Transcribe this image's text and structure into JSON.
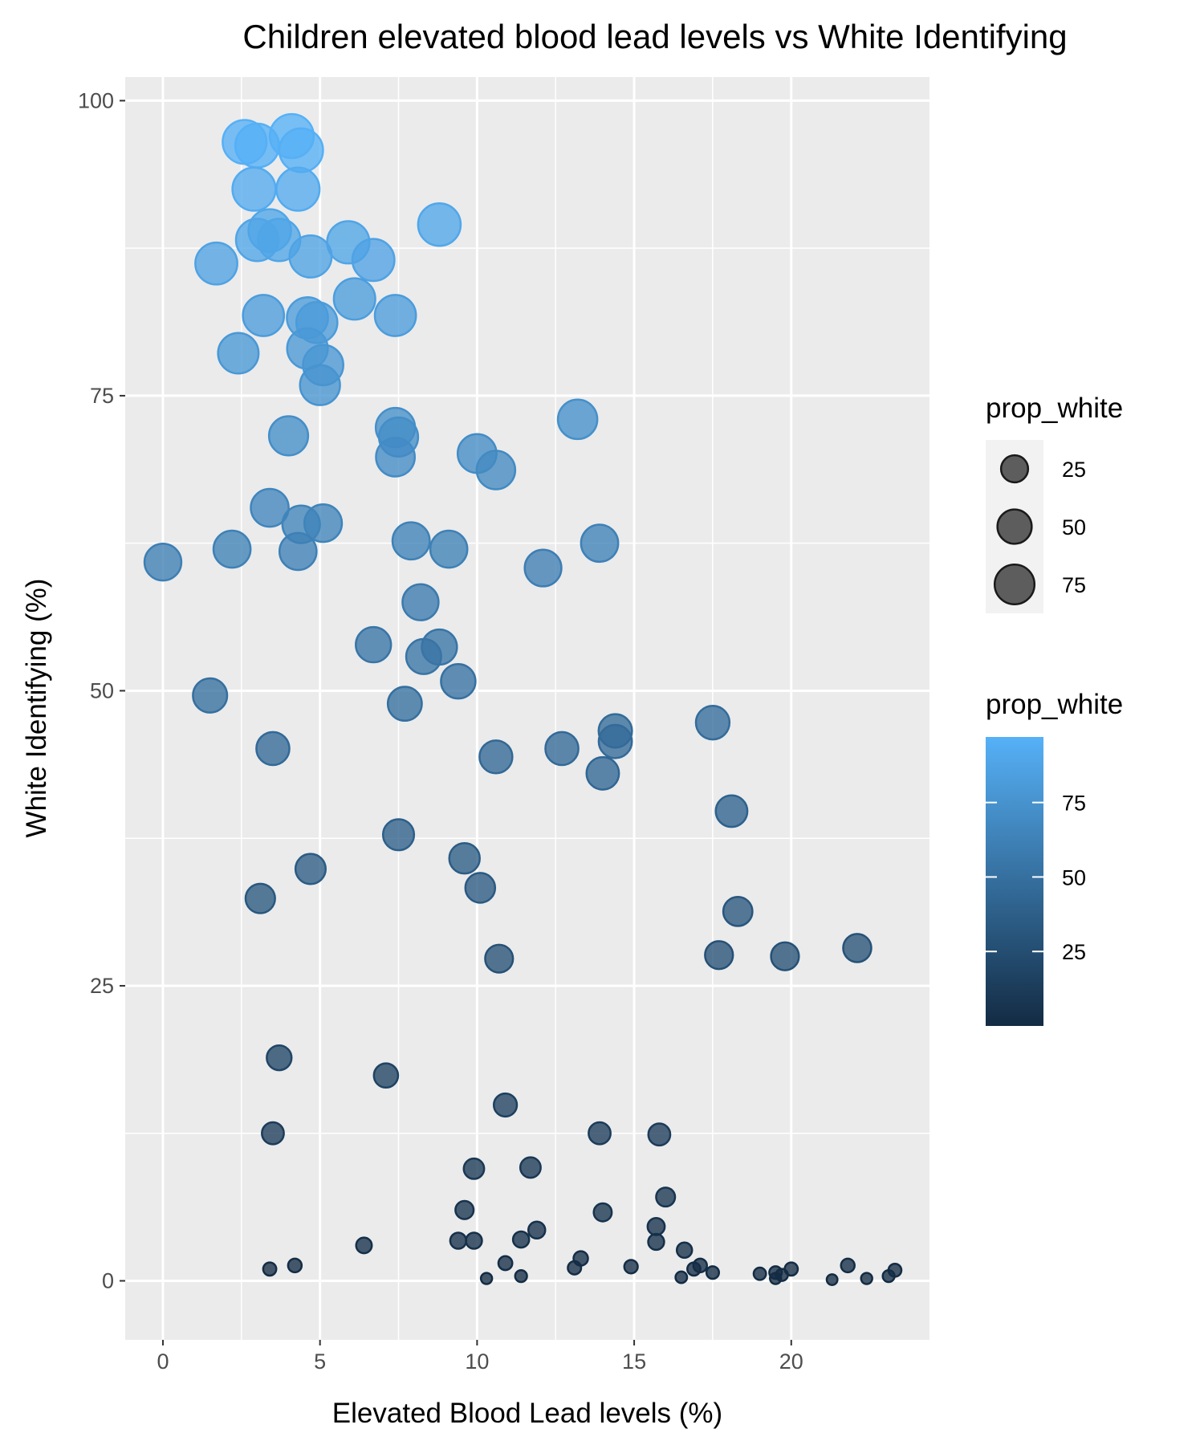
{
  "chart_data": {
    "type": "scatter",
    "title": "Children elevated blood lead levels vs White Identifying",
    "xlabel": "Elevated Blood Lead levels (%)",
    "ylabel": "White Identifying (%)",
    "xlim": [
      -1.2,
      24.4
    ],
    "ylim": [
      -5,
      102
    ],
    "x_ticks": [
      0,
      5,
      10,
      15,
      20
    ],
    "x_tick_labels": [
      "0",
      "5",
      "10",
      "15",
      "20"
    ],
    "y_ticks": [
      0,
      25,
      50,
      75,
      100
    ],
    "y_tick_labels": [
      "0",
      "25",
      "50",
      "75",
      "100"
    ],
    "grid": true,
    "size_legend": {
      "title": "prop_white",
      "entries": [
        {
          "value": 25,
          "label": "25"
        },
        {
          "value": 50,
          "label": "50"
        },
        {
          "value": 75,
          "label": "75"
        }
      ]
    },
    "color_legend": {
      "title": "prop_white",
      "ticks": [
        {
          "value": 75,
          "label": "75"
        },
        {
          "value": 50,
          "label": "50"
        },
        {
          "value": 25,
          "label": "25"
        }
      ],
      "range": [
        0,
        97
      ],
      "low_color": "#132b43",
      "high_color": "#56b1f7"
    },
    "points": [
      {
        "x": 2.6,
        "y": 96.5
      },
      {
        "x": 3.0,
        "y": 96.2
      },
      {
        "x": 4.1,
        "y": 97.0
      },
      {
        "x": 4.4,
        "y": 95.8
      },
      {
        "x": 2.9,
        "y": 92.5
      },
      {
        "x": 4.3,
        "y": 92.5
      },
      {
        "x": 8.8,
        "y": 89.5
      },
      {
        "x": 3.4,
        "y": 89.0
      },
      {
        "x": 3.0,
        "y": 88.2
      },
      {
        "x": 3.7,
        "y": 88.2
      },
      {
        "x": 5.9,
        "y": 88.0
      },
      {
        "x": 4.7,
        "y": 86.8
      },
      {
        "x": 6.7,
        "y": 86.5
      },
      {
        "x": 1.7,
        "y": 86.2
      },
      {
        "x": 6.1,
        "y": 83.2
      },
      {
        "x": 3.2,
        "y": 81.8
      },
      {
        "x": 7.4,
        "y": 81.8
      },
      {
        "x": 4.6,
        "y": 81.6
      },
      {
        "x": 4.9,
        "y": 81.2
      },
      {
        "x": 2.4,
        "y": 78.6
      },
      {
        "x": 4.6,
        "y": 79.0
      },
      {
        "x": 5.1,
        "y": 77.6
      },
      {
        "x": 5.0,
        "y": 75.9
      },
      {
        "x": 13.2,
        "y": 73.0
      },
      {
        "x": 7.4,
        "y": 72.3
      },
      {
        "x": 7.5,
        "y": 71.5
      },
      {
        "x": 4.0,
        "y": 71.6
      },
      {
        "x": 7.4,
        "y": 69.8
      },
      {
        "x": 10.0,
        "y": 70.1
      },
      {
        "x": 10.6,
        "y": 68.7
      },
      {
        "x": 3.4,
        "y": 65.5
      },
      {
        "x": 4.4,
        "y": 64.1
      },
      {
        "x": 5.1,
        "y": 64.2
      },
      {
        "x": 7.9,
        "y": 62.7
      },
      {
        "x": 13.9,
        "y": 62.5
      },
      {
        "x": 2.2,
        "y": 62.0
      },
      {
        "x": 9.1,
        "y": 62.0
      },
      {
        "x": 4.3,
        "y": 61.8
      },
      {
        "x": 0.0,
        "y": 60.9
      },
      {
        "x": 12.1,
        "y": 60.4
      },
      {
        "x": 8.2,
        "y": 57.5
      },
      {
        "x": 6.7,
        "y": 53.9
      },
      {
        "x": 8.8,
        "y": 53.7
      },
      {
        "x": 8.3,
        "y": 52.9
      },
      {
        "x": 9.4,
        "y": 50.8
      },
      {
        "x": 1.5,
        "y": 49.6
      },
      {
        "x": 7.7,
        "y": 48.9
      },
      {
        "x": 14.4,
        "y": 46.6
      },
      {
        "x": 17.5,
        "y": 47.3
      },
      {
        "x": 14.4,
        "y": 45.7
      },
      {
        "x": 3.5,
        "y": 45.1
      },
      {
        "x": 12.7,
        "y": 45.1
      },
      {
        "x": 10.6,
        "y": 44.4
      },
      {
        "x": 14.0,
        "y": 43.0
      },
      {
        "x": 18.1,
        "y": 39.8
      },
      {
        "x": 7.5,
        "y": 37.8
      },
      {
        "x": 9.6,
        "y": 35.8
      },
      {
        "x": 4.7,
        "y": 34.9
      },
      {
        "x": 10.1,
        "y": 33.3
      },
      {
        "x": 3.1,
        "y": 32.4
      },
      {
        "x": 18.3,
        "y": 31.3
      },
      {
        "x": 22.1,
        "y": 28.2
      },
      {
        "x": 17.7,
        "y": 27.6
      },
      {
        "x": 19.8,
        "y": 27.5
      },
      {
        "x": 10.7,
        "y": 27.3
      },
      {
        "x": 3.7,
        "y": 18.9
      },
      {
        "x": 7.1,
        "y": 17.4
      },
      {
        "x": 10.9,
        "y": 14.9
      },
      {
        "x": 3.5,
        "y": 12.5
      },
      {
        "x": 13.9,
        "y": 12.5
      },
      {
        "x": 15.8,
        "y": 12.4
      },
      {
        "x": 9.9,
        "y": 9.5
      },
      {
        "x": 11.7,
        "y": 9.6
      },
      {
        "x": 16.0,
        "y": 7.1
      },
      {
        "x": 9.6,
        "y": 6.0
      },
      {
        "x": 14.0,
        "y": 5.8
      },
      {
        "x": 15.7,
        "y": 4.6
      },
      {
        "x": 11.9,
        "y": 4.3
      },
      {
        "x": 6.4,
        "y": 3.0
      },
      {
        "x": 9.4,
        "y": 3.4
      },
      {
        "x": 9.9,
        "y": 3.4
      },
      {
        "x": 11.4,
        "y": 3.5
      },
      {
        "x": 15.7,
        "y": 3.3
      },
      {
        "x": 16.6,
        "y": 2.6
      },
      {
        "x": 13.3,
        "y": 1.9
      },
      {
        "x": 10.9,
        "y": 1.5
      },
      {
        "x": 3.4,
        "y": 1.0
      },
      {
        "x": 4.2,
        "y": 1.3
      },
      {
        "x": 13.1,
        "y": 1.1
      },
      {
        "x": 14.9,
        "y": 1.2
      },
      {
        "x": 17.1,
        "y": 1.3
      },
      {
        "x": 16.9,
        "y": 1.0
      },
      {
        "x": 17.5,
        "y": 0.7
      },
      {
        "x": 19.0,
        "y": 0.6
      },
      {
        "x": 19.5,
        "y": 0.7
      },
      {
        "x": 19.7,
        "y": 0.5
      },
      {
        "x": 20.0,
        "y": 1.0
      },
      {
        "x": 21.8,
        "y": 1.3
      },
      {
        "x": 23.3,
        "y": 0.9
      },
      {
        "x": 23.1,
        "y": 0.4
      },
      {
        "x": 10.3,
        "y": 0.2
      },
      {
        "x": 11.4,
        "y": 0.4
      },
      {
        "x": 16.5,
        "y": 0.3
      },
      {
        "x": 19.5,
        "y": 0.2
      },
      {
        "x": 21.3,
        "y": 0.1
      },
      {
        "x": 22.4,
        "y": 0.2
      }
    ]
  }
}
